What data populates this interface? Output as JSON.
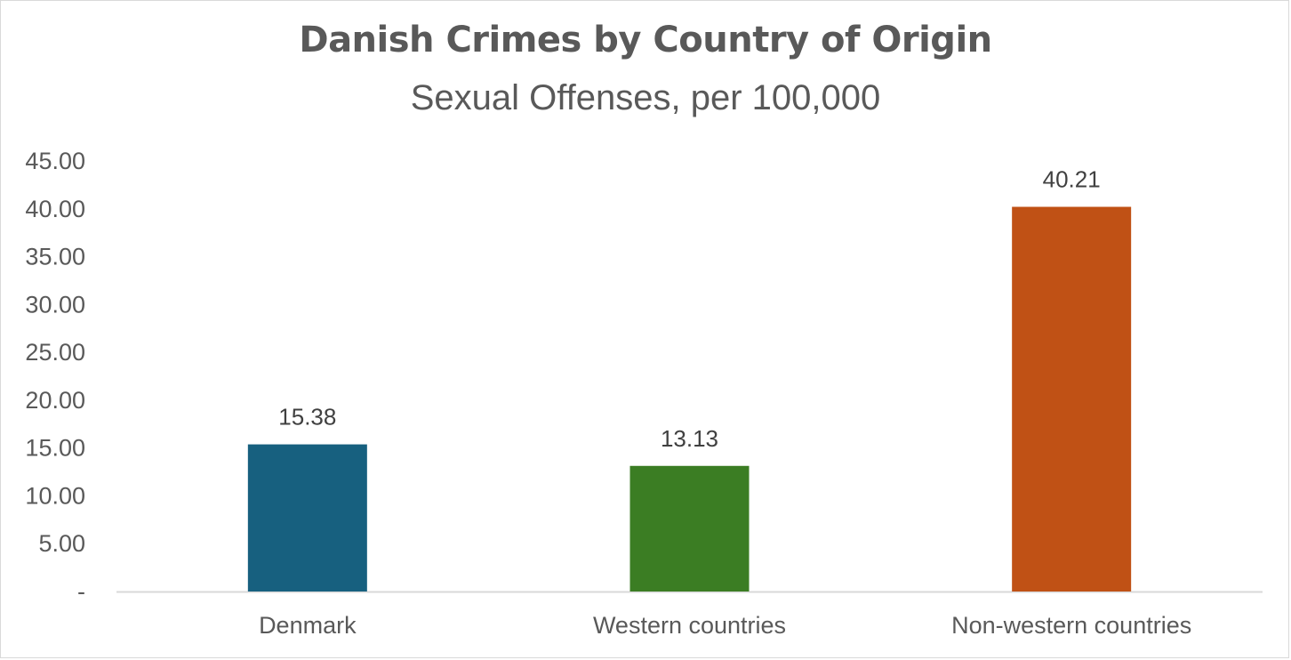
{
  "chart_data": {
    "type": "bar",
    "title": "Danish Crimes by Country of Origin",
    "subtitle": "Sexual Offenses, per 100,000",
    "categories": [
      "Denmark",
      "Western countries",
      "Non-western countries"
    ],
    "values": [
      15.38,
      13.13,
      40.21
    ],
    "value_labels": [
      "15.38",
      "13.13",
      "40.21"
    ],
    "colors": [
      "#17607f",
      "#3b7d23",
      "#c05115"
    ],
    "ylim": [
      0,
      45
    ],
    "yticks": [
      0,
      5,
      10,
      15,
      20,
      25,
      30,
      35,
      40,
      45
    ],
    "ytick_labels": [
      "-",
      "5.00",
      "10.00",
      "15.00",
      "20.00",
      "25.00",
      "30.00",
      "35.00",
      "40.00",
      "45.00"
    ],
    "xlabel": "",
    "ylabel": "",
    "grid": false,
    "legend": "none"
  }
}
